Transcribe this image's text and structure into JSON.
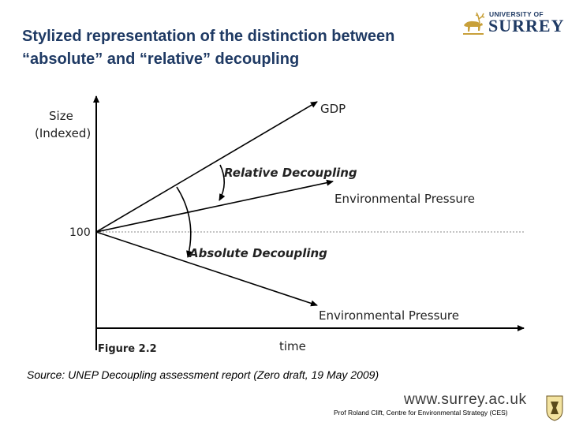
{
  "slide": {
    "title_line1": "Stylized representation of the distinction between",
    "title_line2": "“absolute” and “relative” decoupling",
    "logo_top": "UNIVERSITY OF",
    "logo_main": "SURREY",
    "source": "Source: UNEP Decoupling assessment report (Zero draft, 19 May 2009)",
    "website": "www.surrey.ac.uk",
    "credit": "Prof Roland Clift, Centre for Environmental Strategy (CES)"
  },
  "figure": {
    "y_axis_label_1": "Size",
    "y_axis_label_2": "(Indexed)",
    "baseline_label": "100",
    "x_axis_label": "time",
    "figure_label": "Figure 2.2",
    "line_gdp": "GDP",
    "line_env_relative": "Environmental Pressure",
    "line_env_absolute": "Environmental Pressure",
    "relative_decoupling": "Relative Decoupling",
    "absolute_decoupling": "Absolute Decoupling"
  },
  "colors": {
    "title": "#1f3a64",
    "logo": "#1f3a64",
    "lines": "#000000",
    "baseline": "#888888"
  }
}
